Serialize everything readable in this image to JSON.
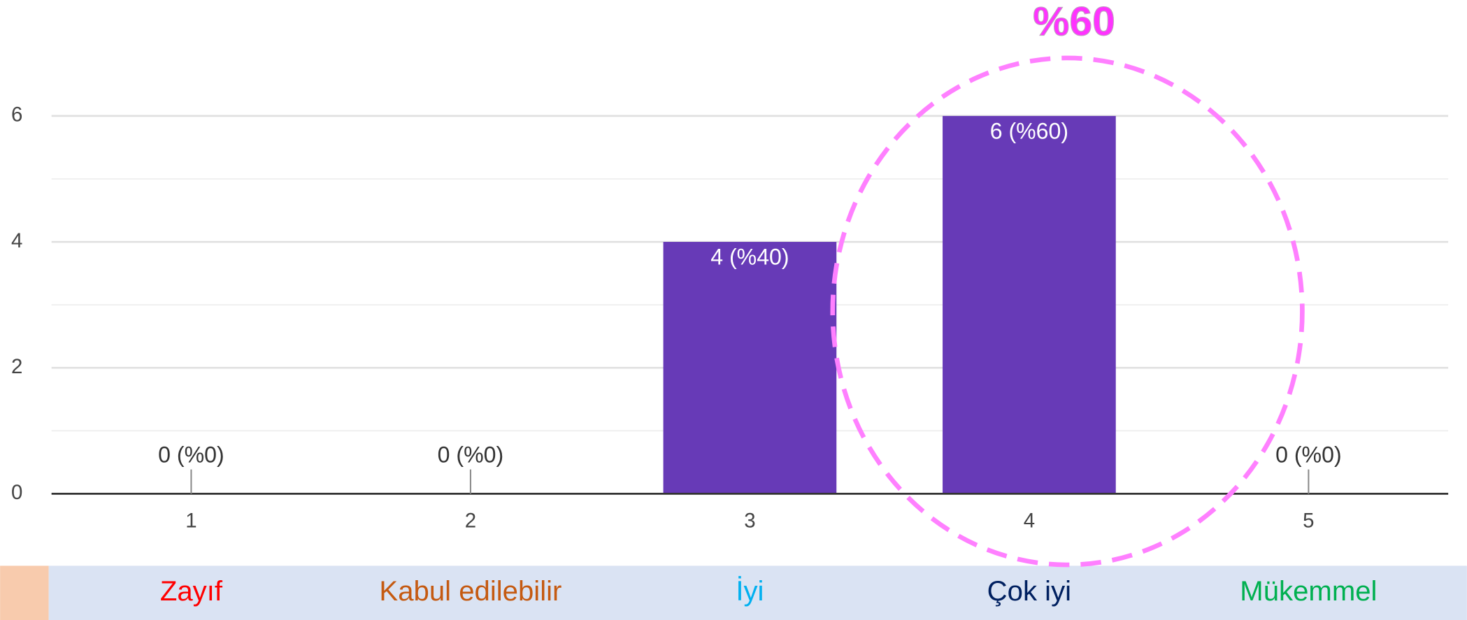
{
  "chart_data": {
    "type": "bar",
    "categories": [
      "1",
      "2",
      "3",
      "4",
      "5"
    ],
    "values": [
      0,
      0,
      4,
      6,
      0
    ],
    "value_labels": [
      "0 (%0)",
      "0 (%0)",
      "4 (%40)",
      "6 (%60)",
      "0 (%0)"
    ],
    "color": "#673ab7",
    "ylim": [
      0,
      6
    ],
    "yticks": [
      0,
      2,
      4,
      6
    ],
    "minor_yticks": [
      1,
      3,
      5
    ],
    "grid": true,
    "annotation": "%60",
    "scale_labels": [
      "Zayıf",
      "Kabul edilebilir",
      "İyi",
      "Çok iyi",
      "Mükemmel"
    ],
    "scale_label_colors": [
      "#ff0000",
      "#c55a11",
      "#00b0f0",
      "#002060",
      "#00b050"
    ]
  }
}
